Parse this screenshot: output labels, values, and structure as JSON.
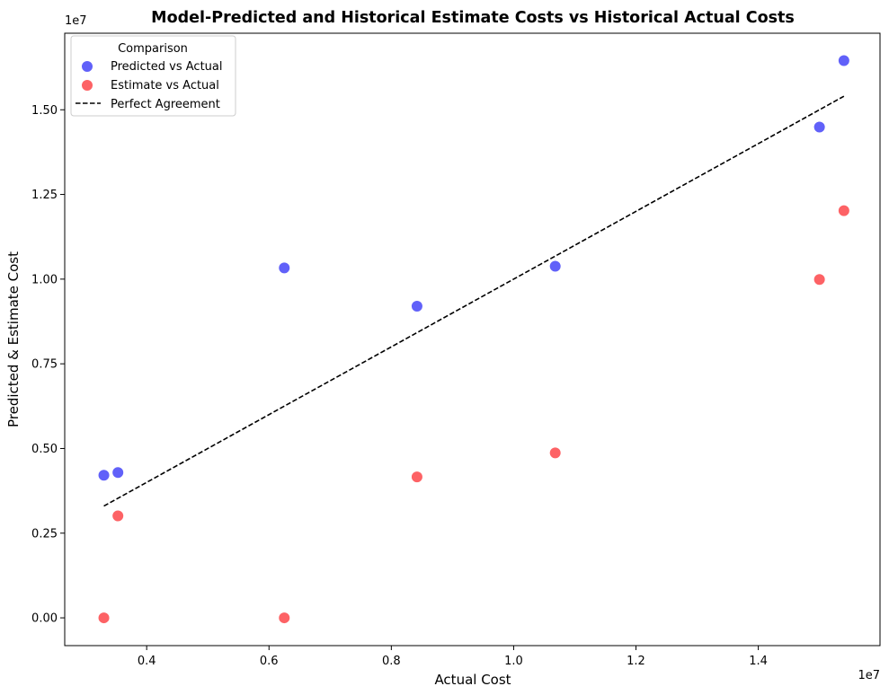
{
  "chart_data": {
    "type": "scatter",
    "title": "Model-Predicted and Historical Estimate Costs vs Historical Actual Costs",
    "xlabel": "Actual Cost",
    "ylabel": "Predicted & Estimate Cost",
    "x_offset_label": "1e7",
    "y_offset_label": "1e7",
    "xlim": [
      2660000,
      15990000
    ],
    "ylim": [
      -820000,
      17260000
    ],
    "x_ticks": [
      4000000,
      6000000,
      8000000,
      10000000,
      12000000,
      14000000
    ],
    "x_tick_labels": [
      "0.4",
      "0.6",
      "0.8",
      "1.0",
      "1.2",
      "1.4"
    ],
    "y_ticks": [
      0,
      2500000,
      5000000,
      7500000,
      10000000,
      12500000,
      15000000
    ],
    "y_tick_labels": [
      "0.00",
      "0.25",
      "0.50",
      "0.75",
      "1.00",
      "1.25",
      "1.50"
    ],
    "grid": false,
    "legend": {
      "title": "Comparison",
      "position": "top-left",
      "entries": [
        "Predicted vs Actual",
        "Estimate vs Actual",
        "Perfect Agreement"
      ]
    },
    "series": [
      {
        "name": "Predicted vs Actual",
        "color": "#6161f9",
        "points": [
          [
            3300000,
            4210000
          ],
          [
            3530000,
            4290000
          ],
          [
            6250000,
            10330000
          ],
          [
            8420000,
            9200000
          ],
          [
            10680000,
            10380000
          ],
          [
            15000000,
            14490000
          ],
          [
            15400000,
            16450000
          ]
        ]
      },
      {
        "name": "Estimate vs Actual",
        "color": "#fd6265",
        "points": [
          [
            3300000,
            0
          ],
          [
            3530000,
            3010000
          ],
          [
            6250000,
            0
          ],
          [
            8420000,
            4160000
          ],
          [
            10680000,
            4870000
          ],
          [
            15000000,
            9990000
          ],
          [
            15400000,
            12020000
          ]
        ]
      }
    ],
    "reference_line": {
      "name": "Perfect Agreement",
      "color": "#000000",
      "style": "dashed",
      "points": [
        [
          3300000,
          3300000
        ],
        [
          15400000,
          15400000
        ]
      ]
    }
  }
}
